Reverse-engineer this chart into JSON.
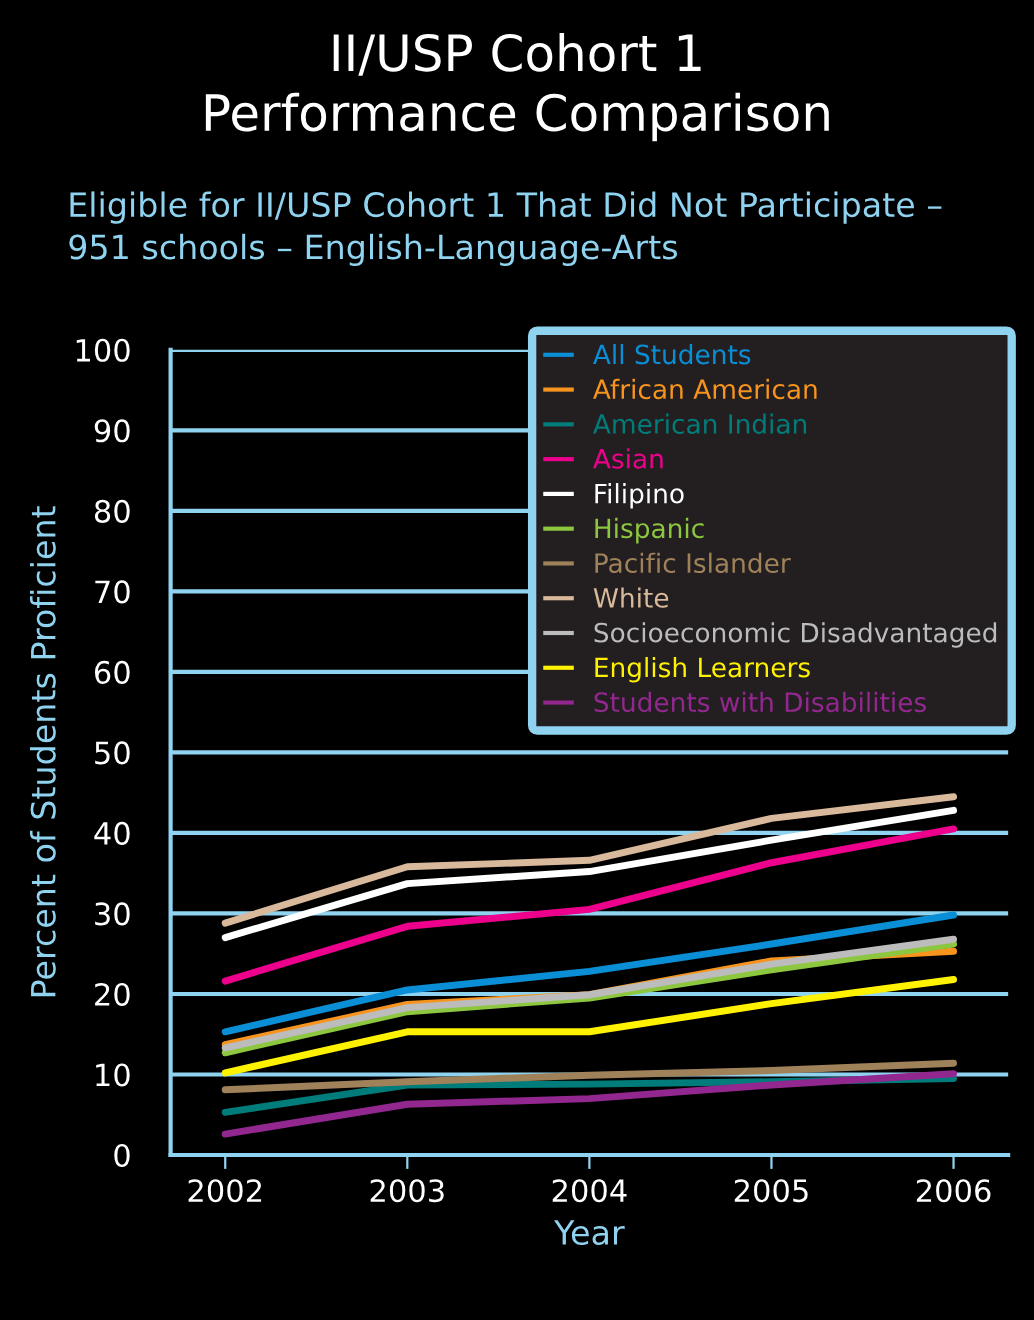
{
  "chart_data": {
    "type": "line",
    "title": "II/USP Cohort 1\nPerformance Comparison",
    "subtitle": "Eligible for II/USP Cohort 1 That Did Not Participate –\n951 schools – English-Language-Arts",
    "xlabel": "Year",
    "ylabel": "Percent of Students Proficient",
    "categories": [
      "2002",
      "2003",
      "2004",
      "2005",
      "2006"
    ],
    "ylim": [
      0,
      100
    ],
    "yticks": [
      0,
      10,
      20,
      30,
      40,
      50,
      60,
      70,
      80,
      90,
      100
    ],
    "grid": "y",
    "legend": "top right",
    "marker": "none",
    "line_style": "solid",
    "series": [
      {
        "name": "All Students",
        "color": "#0a8fd6",
        "values": [
          15.3,
          20.5,
          22.8,
          26.2,
          29.8
        ]
      },
      {
        "name": "African American",
        "color": "#f7941d",
        "values": [
          13.7,
          18.7,
          19.9,
          24.1,
          25.3
        ]
      },
      {
        "name": "American Indian",
        "color": "#007c7a",
        "values": [
          5.3,
          8.7,
          8.8,
          9.1,
          9.5
        ]
      },
      {
        "name": "Asian",
        "color": "#ec008c",
        "values": [
          21.6,
          28.4,
          30.5,
          36.3,
          40.5
        ]
      },
      {
        "name": "Filipino",
        "color": "#ffffff",
        "values": [
          27,
          33.7,
          35.2,
          39.1,
          42.8
        ]
      },
      {
        "name": "Hispanic",
        "color": "#8dc63f",
        "values": [
          12.7,
          17.8,
          19.5,
          23,
          26.2
        ]
      },
      {
        "name": "Pacific Islander",
        "color": "#a0825a",
        "values": [
          8.1,
          9.1,
          9.9,
          10.5,
          11.4
        ]
      },
      {
        "name": "White",
        "color": "#d9b99b",
        "values": [
          28.8,
          35.8,
          36.6,
          41.8,
          44.5
        ]
      },
      {
        "name": "Socioeconomic Disadvantaged",
        "color": "#bcbcbc",
        "values": [
          13.3,
          18.3,
          19.9,
          23.7,
          26.8
        ]
      },
      {
        "name": "English Learners",
        "color": "#fff200",
        "values": [
          10.2,
          15.3,
          15.3,
          18.8,
          21.8
        ]
      },
      {
        "name": "Students with Disabilities",
        "color": "#92278f",
        "values": [
          2.6,
          6.3,
          7,
          8.7,
          10.1
        ]
      }
    ]
  }
}
